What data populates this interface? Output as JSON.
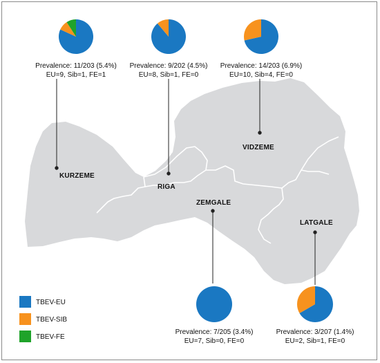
{
  "colors": {
    "eu": "#1a78c2",
    "sib": "#f7921e",
    "fe": "#1fa32a",
    "land": "#d8d9db",
    "border": "#ffffff",
    "leader": "#222222"
  },
  "legend": [
    {
      "key": "eu",
      "label": "TBEV-EU"
    },
    {
      "key": "sib",
      "label": "TBEV-SIB"
    },
    {
      "key": "fe",
      "label": "TBEV-FE"
    }
  ],
  "regions": [
    {
      "id": "kurzeme",
      "name": "KURZEME",
      "prevalence_text": "Prevalence: 11/203 (5.4%)",
      "counts_text": "EU=9, Sib=1, FE=1",
      "counts": {
        "eu": 9,
        "sib": 1,
        "fe": 1
      }
    },
    {
      "id": "riga",
      "name": "RIGA",
      "prevalence_text": "Prevalence: 9/202 (4.5%)",
      "counts_text": "EU=8, Sib=1, FE=0",
      "counts": {
        "eu": 8,
        "sib": 1,
        "fe": 0
      }
    },
    {
      "id": "vidzeme",
      "name": "VIDZEME",
      "prevalence_text": "Prevalence: 14/203 (6.9%)",
      "counts_text": "EU=10, Sib=4, FE=0",
      "counts": {
        "eu": 10,
        "sib": 4,
        "fe": 0
      }
    },
    {
      "id": "zemgale",
      "name": "ZEMGALE",
      "prevalence_text": "Prevalence: 7/205 (3.4%)",
      "counts_text": "EU=7, Sib=0, FE=0",
      "counts": {
        "eu": 7,
        "sib": 0,
        "fe": 0
      }
    },
    {
      "id": "latgale",
      "name": "LATGALE",
      "prevalence_text": "Prevalence: 3/207 (1.4%)",
      "counts_text": "EU=2, Sib=1, FE=0",
      "counts": {
        "eu": 2,
        "sib": 1,
        "fe": 0
      }
    }
  ]
}
